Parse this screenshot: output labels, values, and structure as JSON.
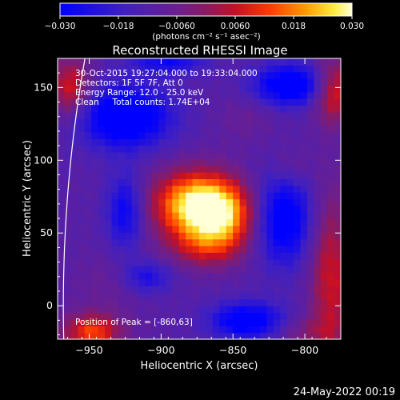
{
  "chart_data": {
    "type": "heatmap",
    "title": "Reconstructed RHESSI Image",
    "xlabel": "Heliocentric X (arcsec)",
    "ylabel": "Heliocentric Y (arcsec)",
    "xlim": [
      -972,
      -775
    ],
    "ylim": [
      -23,
      170
    ],
    "x_ticks": [
      -950,
      -900,
      -850,
      -800
    ],
    "y_ticks": [
      0,
      50,
      100,
      150
    ],
    "colorbar": {
      "label": "(photons cm⁻² s⁻¹ asec⁻²)",
      "range": [
        -0.03,
        0.03
      ],
      "ticks": [
        "−0.030",
        "−0.018",
        "−0.0060",
        "0.0060",
        "0.018",
        "0.030"
      ]
    },
    "annotations": {
      "time_range": "30-Oct-2015 19:27:04.000 to 19:33:04.000",
      "detectors": "Detectors: 1F 5F 7F, Att 0",
      "energy": "Energy Range: 12.0 - 25.0 keV",
      "clean": "Clean     Total counts: 1.74E+04",
      "peak": "Position of Peak = [-860,63]"
    },
    "peak_position": [
      -860,
      63
    ],
    "sources": [
      {
        "x": -878,
        "y": 70,
        "sx": 20,
        "sy": 16,
        "amp": 0.034
      },
      {
        "x": -858,
        "y": 62,
        "sx": 17,
        "sy": 16,
        "amp": 0.028
      },
      {
        "x": -870,
        "y": 40,
        "sx": 18,
        "sy": 10,
        "amp": 0.012
      },
      {
        "x": -935,
        "y": 15,
        "sx": 18,
        "sy": 15,
        "amp": 0.004
      },
      {
        "x": -948,
        "y": -18,
        "sx": 14,
        "sy": 9,
        "amp": 0.024
      },
      {
        "x": -963,
        "y": 150,
        "sx": 10,
        "sy": 14,
        "amp": 0.02
      },
      {
        "x": -780,
        "y": 148,
        "sx": 10,
        "sy": 15,
        "amp": 0.022
      },
      {
        "x": -782,
        "y": 20,
        "sx": 10,
        "sy": 40,
        "amp": 0.018
      },
      {
        "x": -810,
        "y": 95,
        "sx": 10,
        "sy": 10,
        "amp": 0.006
      },
      {
        "x": -840,
        "y": 130,
        "sx": 14,
        "sy": 12,
        "amp": 0.004
      },
      {
        "x": -800,
        "y": -18,
        "sx": 16,
        "sy": 8,
        "amp": 0.008
      }
    ],
    "negative_lobes": [
      {
        "x": -925,
        "y": 130,
        "sx": 22,
        "sy": 15,
        "amp": -0.028
      },
      {
        "x": -810,
        "y": 152,
        "sx": 18,
        "sy": 10,
        "amp": -0.026
      },
      {
        "x": -815,
        "y": 60,
        "sx": 14,
        "sy": 22,
        "amp": -0.024
      },
      {
        "x": -925,
        "y": 65,
        "sx": 9,
        "sy": 18,
        "amp": -0.018
      },
      {
        "x": -910,
        "y": 20,
        "sx": 12,
        "sy": 8,
        "amp": -0.014
      },
      {
        "x": -840,
        "y": -10,
        "sx": 18,
        "sy": 9,
        "amp": -0.024
      },
      {
        "x": -895,
        "y": 168,
        "sx": 18,
        "sy": 6,
        "amp": -0.016
      }
    ],
    "baseline": -0.011,
    "limb": {
      "center": [
        0,
        0
      ],
      "radius": 968
    }
  },
  "footer": {
    "date": "24-May-2022 00:19"
  }
}
